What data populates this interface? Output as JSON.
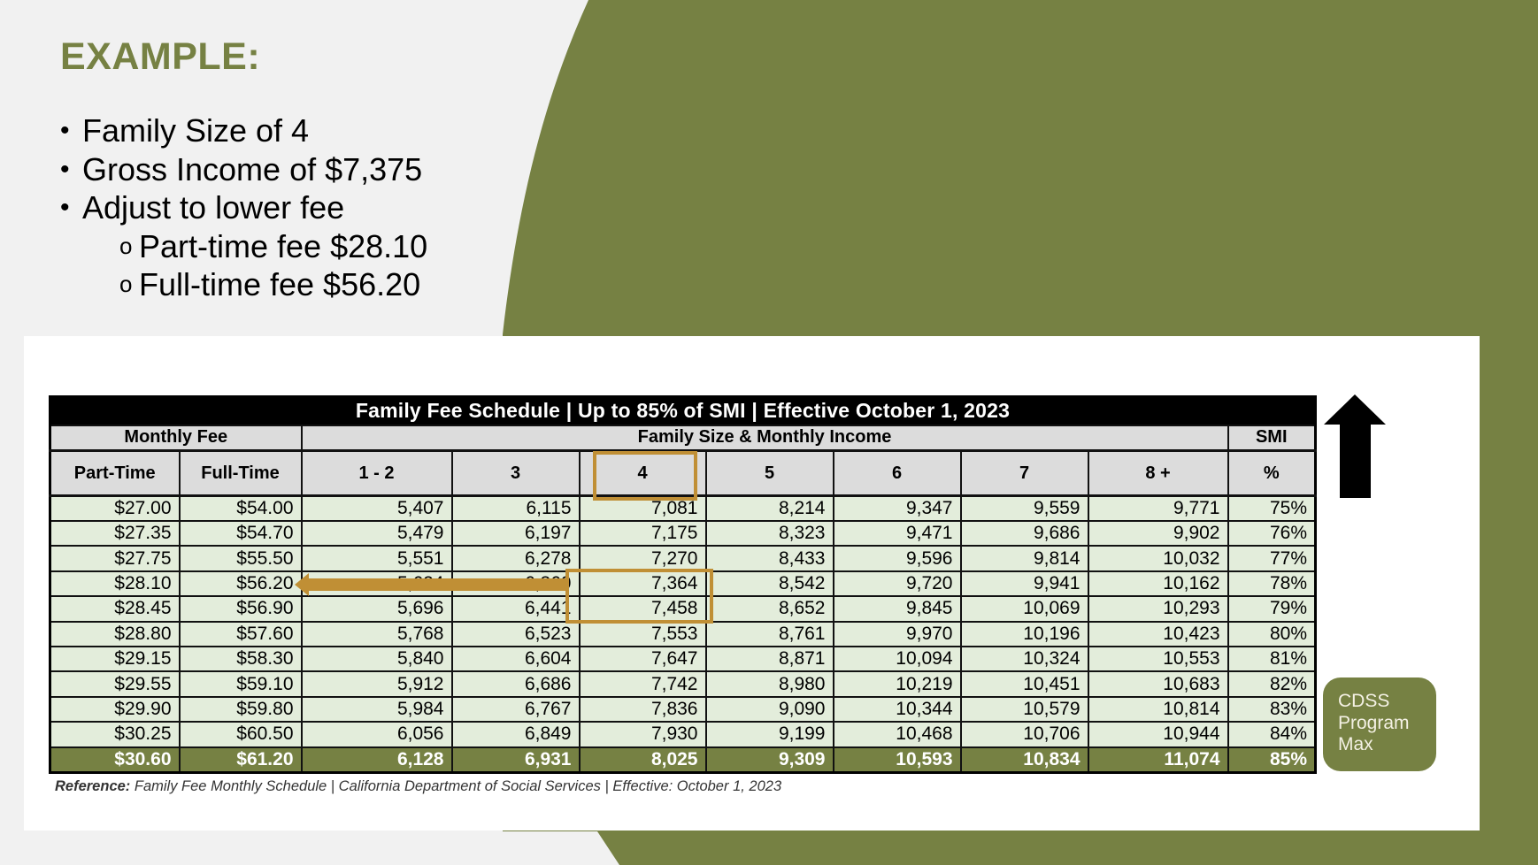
{
  "slide": {
    "heading": "EXAMPLE:",
    "bullets": [
      {
        "level": 1,
        "marker": "•",
        "text": "Family Size of 4"
      },
      {
        "level": 1,
        "marker": "•",
        "text": "Gross Income of $7,375"
      },
      {
        "level": 1,
        "marker": "•",
        "text": "Adjust to lower fee"
      },
      {
        "level": 2,
        "marker": "o",
        "text": "Part-time fee $28.10"
      },
      {
        "level": 2,
        "marker": "o",
        "text": "Full-time fee $56.20"
      }
    ]
  },
  "colors": {
    "accent_green": "#768143",
    "background": "#f1f1f1",
    "panel": "#ffffff",
    "cell_green": "#e3eddb",
    "header_gray": "#dcdcdc",
    "highlight_gold": "#c08f35"
  },
  "table": {
    "title": "Family Fee Schedule | Up to 85% of SMI | Effective October 1, 2023",
    "group_headers": {
      "monthly_fee": "Monthly Fee",
      "family_size": "Family Size & Monthly Income",
      "smi": "SMI"
    },
    "columns": [
      "Part-Time",
      "Full-Time",
      "1 - 2",
      "3",
      "4",
      "5",
      "6",
      "7",
      "8 +",
      "%"
    ],
    "rows": [
      [
        "$27.00",
        "$54.00",
        "5,407",
        "6,115",
        "7,081",
        "8,214",
        "9,347",
        "9,559",
        "9,771",
        "75%"
      ],
      [
        "$27.35",
        "$54.70",
        "5,479",
        "6,197",
        "7,175",
        "8,323",
        "9,471",
        "9,686",
        "9,902",
        "76%"
      ],
      [
        "$27.75",
        "$55.50",
        "5,551",
        "6,278",
        "7,270",
        "8,433",
        "9,596",
        "9,814",
        "10,032",
        "77%"
      ],
      [
        "$28.10",
        "$56.20",
        "5,624",
        "6,360",
        "7,364",
        "8,542",
        "9,720",
        "9,941",
        "10,162",
        "78%"
      ],
      [
        "$28.45",
        "$56.90",
        "5,696",
        "6,441",
        "7,458",
        "8,652",
        "9,845",
        "10,069",
        "10,293",
        "79%"
      ],
      [
        "$28.80",
        "$57.60",
        "5,768",
        "6,523",
        "7,553",
        "8,761",
        "9,970",
        "10,196",
        "10,423",
        "80%"
      ],
      [
        "$29.15",
        "$58.30",
        "5,840",
        "6,604",
        "7,647",
        "8,871",
        "10,094",
        "10,324",
        "10,553",
        "81%"
      ],
      [
        "$29.55",
        "$59.10",
        "5,912",
        "6,686",
        "7,742",
        "8,980",
        "10,219",
        "10,451",
        "10,683",
        "82%"
      ],
      [
        "$29.90",
        "$59.80",
        "5,984",
        "6,767",
        "7,836",
        "9,090",
        "10,344",
        "10,579",
        "10,814",
        "83%"
      ],
      [
        "$30.25",
        "$60.50",
        "6,056",
        "6,849",
        "7,930",
        "9,199",
        "10,468",
        "10,706",
        "10,944",
        "84%"
      ],
      [
        "$30.60",
        "$61.20",
        "6,128",
        "6,931",
        "8,025",
        "9,309",
        "10,593",
        "10,834",
        "11,074",
        "85%"
      ]
    ],
    "max_row_index": 10
  },
  "annotations": {
    "highlighted_column": "4",
    "highlighted_rows": [
      "78%",
      "79%"
    ],
    "arrow_points_to": "$56.20",
    "up_arrow_icon": "up-arrow-icon",
    "cdss_label": [
      "CDSS",
      "Program",
      "Max"
    ]
  },
  "reference": {
    "label": "Reference:",
    "text": " Family Fee Monthly Schedule | California Department of Social Services | Effective: October 1, 2023"
  }
}
